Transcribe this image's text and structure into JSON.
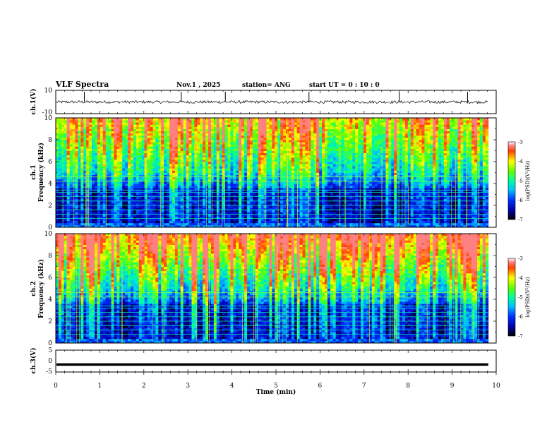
{
  "header": {
    "title": "VLF Spectra",
    "date": "Nov.1  , 2025",
    "station": "station= ANG",
    "start": "start  UT =   0 : 10 : 0"
  },
  "chart_data": [
    {
      "type": "line",
      "panel": "ch1-waveform",
      "ylabel": "ch.1(V)",
      "ylim": [
        -10,
        10
      ],
      "yticks": [
        "10",
        "-10"
      ],
      "xlim": [
        0,
        10
      ],
      "baseline": 0,
      "noise_amplitude": 1.2,
      "spikes_x": [
        0.65,
        2.85,
        3.85,
        5.75,
        7.8,
        9.35
      ]
    },
    {
      "type": "heatmap",
      "panel": "ch1-spectrogram",
      "ylabel": "ch.1\nFrequency (kHz)",
      "ylabel_line1": "ch.1",
      "ylabel_line2": "Frequency  (kHz)",
      "ylim": [
        0,
        10
      ],
      "yticks": [
        "0",
        "2",
        "4",
        "6",
        "8",
        "10"
      ],
      "xlim": [
        0,
        10
      ],
      "colorbar": {
        "label": "log(PSD)(V²/Hz)",
        "range": [
          -7,
          -3
        ],
        "ticks": [
          "-3",
          "-4",
          "-5",
          "-6",
          "-7"
        ]
      }
    },
    {
      "type": "heatmap",
      "panel": "ch2-spectrogram",
      "ylabel_line1": "ch.2",
      "ylabel_line2": "Frequency  (kHz)",
      "ylim": [
        0,
        10
      ],
      "yticks": [
        "0",
        "2",
        "4",
        "6",
        "8",
        "10"
      ],
      "xlim": [
        0,
        10
      ],
      "colorbar": {
        "label": "log(PSD)(V²/Hz)",
        "range": [
          -7,
          -3
        ],
        "ticks": [
          "-3",
          "-4",
          "-5",
          "-6",
          "-7"
        ]
      }
    },
    {
      "type": "line",
      "panel": "ch3-waveform",
      "ylabel": "ch.3(V)",
      "ylim": [
        -5,
        5
      ],
      "yticks": [
        "5",
        "0",
        "-5"
      ],
      "xlim": [
        0,
        10
      ],
      "baseline": -1.5
    }
  ],
  "xaxis": {
    "label": "Time  (min)",
    "ticks": [
      "0",
      "1",
      "2",
      "3",
      "4",
      "5",
      "6",
      "7",
      "8",
      "9",
      "10"
    ],
    "data_end": 9.82
  }
}
